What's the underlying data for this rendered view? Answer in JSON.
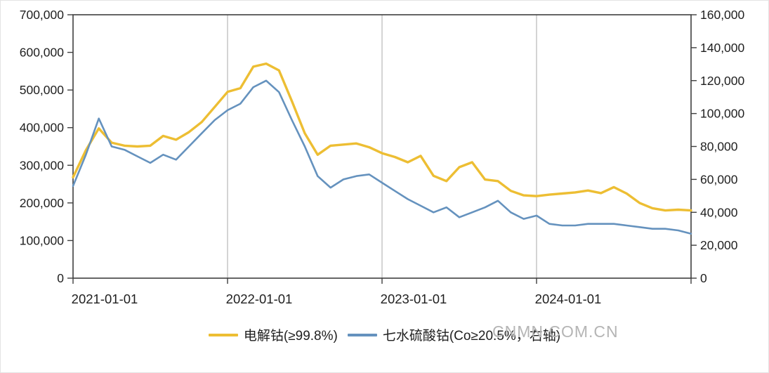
{
  "chart_data": {
    "type": "line",
    "title": "",
    "x": [
      "2021-01",
      "2021-02",
      "2021-03",
      "2021-04",
      "2021-05",
      "2021-06",
      "2021-07",
      "2021-08",
      "2021-09",
      "2021-10",
      "2021-11",
      "2021-12",
      "2022-01",
      "2022-02",
      "2022-03",
      "2022-04",
      "2022-05",
      "2022-06",
      "2022-07",
      "2022-08",
      "2022-09",
      "2022-10",
      "2022-11",
      "2022-12",
      "2023-01",
      "2023-02",
      "2023-03",
      "2023-04",
      "2023-05",
      "2023-06",
      "2023-07",
      "2023-08",
      "2023-09",
      "2023-10",
      "2023-11",
      "2023-12",
      "2024-01",
      "2024-02",
      "2024-03",
      "2024-04",
      "2024-05",
      "2024-06",
      "2024-07",
      "2024-08",
      "2024-09",
      "2024-10",
      "2024-11",
      "2024-12",
      "2025-01"
    ],
    "x_tick_labels": [
      "2021-01-01",
      "2022-01-01",
      "2023-01-01",
      "2024-01-01"
    ],
    "x_tick_positions": [
      0,
      12,
      24,
      36
    ],
    "gridlines_x": [
      "2022-01",
      "2023-01",
      "2024-01"
    ],
    "left_axis": {
      "max": 700000,
      "step": 100000,
      "tick_labels": [
        "0",
        "100,000",
        "200,000",
        "300,000",
        "400,000",
        "500,000",
        "600,000",
        "700,000"
      ]
    },
    "right_axis": {
      "max": 160000,
      "step": 20000,
      "tick_labels": [
        "0",
        "20,000",
        "40,000",
        "60,000",
        "80,000",
        "100,000",
        "120,000",
        "140,000",
        "160,000"
      ]
    },
    "series": [
      {
        "name": "电解钴(≥99.8%)",
        "axis": "left",
        "color": "#EDBE33",
        "values": [
          268000,
          340000,
          398000,
          360000,
          352000,
          350000,
          352000,
          378000,
          368000,
          388000,
          415000,
          455000,
          495000,
          505000,
          562000,
          570000,
          552000,
          470000,
          385000,
          328000,
          352000,
          355000,
          358000,
          348000,
          332000,
          322000,
          308000,
          325000,
          272000,
          258000,
          295000,
          308000,
          262000,
          258000,
          232000,
          220000,
          218000,
          222000,
          225000,
          228000,
          233000,
          226000,
          242000,
          225000,
          200000,
          186000,
          180000,
          182000,
          180000
        ]
      },
      {
        "name": "七水硫酸钴(Co≥20.5%，右轴)",
        "axis": "right",
        "color": "#6592BE",
        "values": [
          56000,
          75000,
          97000,
          80000,
          78000,
          74000,
          70000,
          75000,
          72000,
          80000,
          88000,
          96000,
          102000,
          106000,
          116000,
          120000,
          113000,
          96000,
          80000,
          62000,
          55000,
          60000,
          62000,
          63000,
          58000,
          53000,
          48000,
          44000,
          40000,
          43000,
          37000,
          40000,
          43000,
          47000,
          40000,
          36000,
          38000,
          33000,
          32000,
          32000,
          33000,
          33000,
          33000,
          32000,
          31000,
          30000,
          30000,
          29000,
          27000
        ]
      }
    ],
    "colors": {
      "axis": "#3f3f3f",
      "gridline": "#a9a9a9",
      "label": "#1f1f1f"
    },
    "legend_position": "bottom"
  },
  "legend": {
    "items": [
      {
        "label": "电解钴(≥99.8%)"
      },
      {
        "label": "七水硫酸钴(Co≥20.5%，右轴)"
      }
    ]
  },
  "watermark": {
    "text": "CNMN.COM.CN",
    "color": "#b5b5b5"
  }
}
